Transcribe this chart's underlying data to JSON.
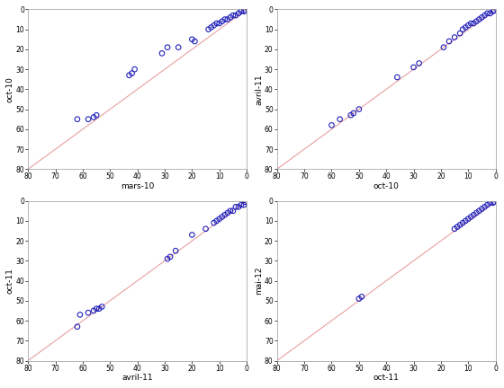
{
  "plots": [
    {
      "xlabel": "mars-10",
      "ylabel": "oct-10",
      "xlim": [
        80,
        0
      ],
      "ylim": [
        80,
        0
      ],
      "xticks": [
        80,
        70,
        60,
        50,
        40,
        30,
        20,
        10,
        0
      ],
      "yticks": [
        80,
        70,
        60,
        50,
        40,
        30,
        20,
        10,
        0
      ],
      "x": [
        62,
        58,
        56,
        55,
        43,
        42,
        41,
        31,
        29,
        25,
        20,
        19,
        14,
        13,
        12,
        11,
        10,
        9,
        8,
        7,
        6,
        5,
        4,
        3,
        2,
        1,
        0.5
      ],
      "y": [
        55,
        55,
        54,
        53,
        33,
        32,
        30,
        22,
        19,
        19,
        15,
        16,
        10,
        9,
        8,
        7,
        7,
        6,
        5,
        5,
        4,
        3,
        3,
        2,
        1,
        1,
        0.5
      ]
    },
    {
      "xlabel": "oct-10",
      "ylabel": "avril-11",
      "xlim": [
        80,
        0
      ],
      "ylim": [
        80,
        0
      ],
      "xticks": [
        80,
        70,
        60,
        50,
        40,
        30,
        20,
        10,
        0
      ],
      "yticks": [
        80,
        70,
        60,
        50,
        40,
        30,
        20,
        10,
        0
      ],
      "x": [
        60,
        57,
        53,
        52,
        50,
        36,
        30,
        28,
        19,
        17,
        15,
        13,
        12,
        11,
        10,
        9,
        8,
        7,
        6,
        5,
        4,
        3,
        2,
        1,
        0.5
      ],
      "y": [
        58,
        55,
        53,
        52,
        50,
        34,
        29,
        27,
        19,
        16,
        14,
        12,
        10,
        9,
        8,
        7,
        7,
        6,
        5,
        4,
        3,
        2,
        2,
        1,
        0.5
      ]
    },
    {
      "xlabel": "avril-11",
      "ylabel": "oct-11",
      "xlim": [
        80,
        0
      ],
      "ylim": [
        80,
        0
      ],
      "xticks": [
        80,
        70,
        60,
        50,
        40,
        30,
        20,
        10,
        0
      ],
      "yticks": [
        80,
        70,
        60,
        50,
        40,
        30,
        20,
        10,
        0
      ],
      "x": [
        62,
        61,
        58,
        56,
        55,
        54,
        53,
        29,
        28,
        26,
        20,
        15,
        12,
        11,
        10,
        9,
        8,
        7,
        6,
        5,
        4,
        3,
        2,
        1,
        0.5
      ],
      "y": [
        63,
        57,
        56,
        55,
        54,
        54,
        53,
        29,
        28,
        25,
        17,
        14,
        11,
        10,
        9,
        8,
        7,
        6,
        5,
        5,
        3,
        3,
        2,
        2,
        0.5
      ]
    },
    {
      "xlabel": "oct-11",
      "ylabel": "mai-12",
      "xlim": [
        80,
        0
      ],
      "ylim": [
        80,
        0
      ],
      "xticks": [
        80,
        70,
        60,
        50,
        40,
        30,
        20,
        10,
        0
      ],
      "yticks": [
        80,
        70,
        60,
        50,
        40,
        30,
        20,
        10,
        0
      ],
      "x": [
        50,
        49,
        15,
        14,
        13,
        12,
        11,
        10,
        9,
        8,
        7,
        6,
        5,
        4,
        3,
        2,
        1,
        0.5
      ],
      "y": [
        49,
        48,
        14,
        13,
        12,
        11,
        10,
        9,
        8,
        7,
        6,
        5,
        4,
        3,
        2,
        1,
        1,
        0.5
      ]
    }
  ],
  "dot_color": "#2222bb",
  "line_color": "#e8a0a0",
  "marker_size": 4,
  "marker_linewidth": 0.8,
  "bg_color": "#ffffff",
  "fig_bg": "#ffffff"
}
